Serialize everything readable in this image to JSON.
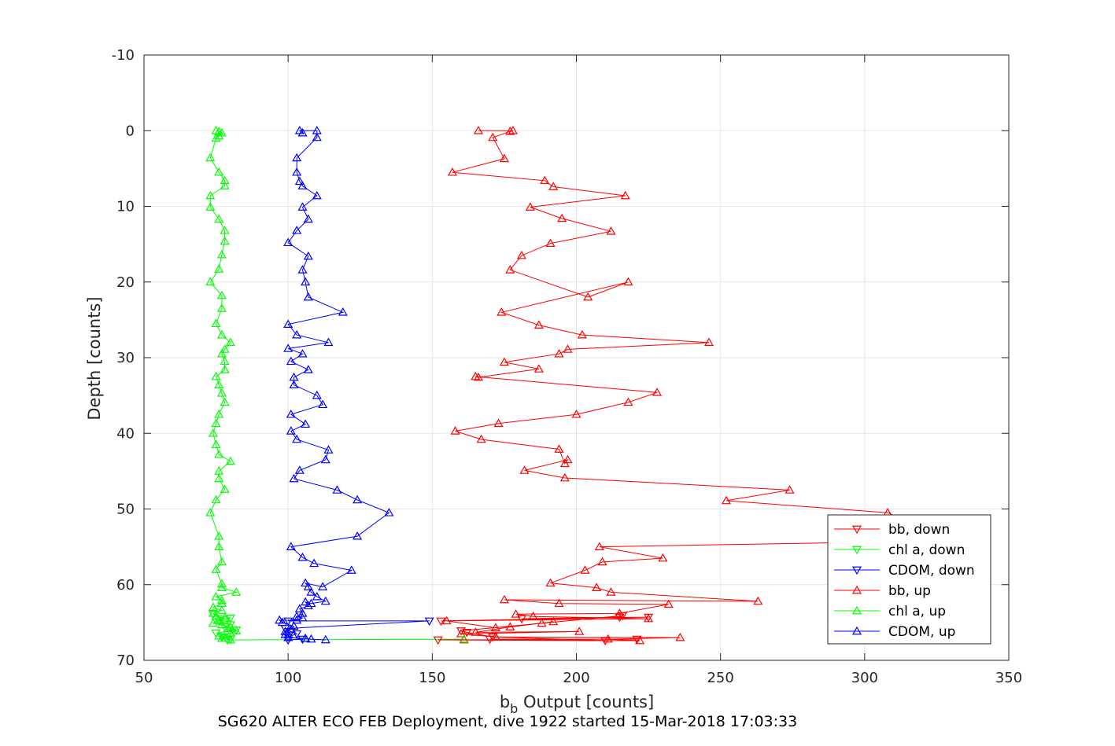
{
  "chart_data": {
    "type": "line",
    "xlabel_main": "b",
    "xlabel_sub": "b",
    "xlabel_rest": " Output [counts]",
    "ylabel": "Depth [counts]",
    "caption": "SG620 ALTER ECO FEB Deployment, dive 1922 started 15-Mar-2018 17:03:33",
    "xlim": [
      50,
      350
    ],
    "ylim": [
      -10,
      70
    ],
    "y_reversed": true,
    "grid": true,
    "xticks": [
      "50",
      "100",
      "150",
      "200",
      "250",
      "300",
      "350"
    ],
    "yticks": [
      "-10",
      "0",
      "10",
      "20",
      "30",
      "40",
      "50",
      "60",
      "70"
    ],
    "legend_position": "bottom-right",
    "series": [
      {
        "name": "bb, down",
        "color": "#ff0000",
        "marker": "triangle-down",
        "points": [
          [
            153,
            64.8
          ],
          [
            225,
            64.3
          ],
          [
            181,
            64.5
          ],
          [
            215,
            64.3
          ],
          [
            216,
            64.1
          ],
          [
            160,
            66.1
          ],
          [
            162,
            66.3
          ],
          [
            171,
            66.9
          ],
          [
            210,
            67.4
          ],
          [
            152,
            67.3
          ],
          [
            221,
            67.2
          ],
          [
            170,
            67.2
          ]
        ]
      },
      {
        "name": "chl a, down",
        "color": "#00ff00",
        "marker": "triangle-down",
        "points": [
          [
            74,
            63.9
          ],
          [
            80,
            64.4
          ],
          [
            76,
            64.8
          ],
          [
            80,
            65.3
          ],
          [
            78,
            65.6
          ],
          [
            82,
            66.0
          ],
          [
            75,
            66.4
          ],
          [
            79,
            66.6
          ],
          [
            77,
            66.9
          ],
          [
            80,
            67.2
          ],
          [
            79,
            67.3
          ]
        ]
      },
      {
        "name": "CDOM, down",
        "color": "#0000ff",
        "marker": "triangle-down",
        "points": [
          [
            100,
            64.8
          ],
          [
            149,
            64.8
          ],
          [
            99,
            65.8
          ],
          [
            101,
            66.2
          ],
          [
            103,
            66.5
          ],
          [
            100,
            66.9
          ],
          [
            105,
            67.2
          ],
          [
            100,
            67.3
          ]
        ]
      },
      {
        "name": "bb, up",
        "color": "#ff0000",
        "marker": "triangle-up",
        "points": [
          [
            161,
            67.3
          ],
          [
            222,
            67.4
          ],
          [
            211,
            67.2
          ],
          [
            236,
            67.0
          ],
          [
            172,
            66.9
          ],
          [
            160,
            66.5
          ],
          [
            201,
            66.2
          ],
          [
            165,
            66.3
          ],
          [
            177,
            65.6
          ],
          [
            192,
            64.9
          ],
          [
            188,
            65.1
          ],
          [
            172,
            65.7
          ],
          [
            155,
            64.8
          ],
          [
            225,
            64.5
          ],
          [
            185,
            64.2
          ],
          [
            179,
            63.9
          ],
          [
            215,
            63.8
          ],
          [
            232,
            62.6
          ],
          [
            194,
            62.5
          ],
          [
            175,
            62.0
          ],
          [
            263,
            62.2
          ],
          [
            212,
            61.0
          ],
          [
            207,
            60.4
          ],
          [
            191,
            59.8
          ],
          [
            203,
            58.1
          ],
          [
            209,
            57.0
          ],
          [
            230,
            56.5
          ],
          [
            208,
            55.0
          ],
          [
            330,
            54.2
          ],
          [
            308,
            50.5
          ],
          [
            252,
            48.9
          ],
          [
            274,
            47.5
          ],
          [
            196,
            45.9
          ],
          [
            182,
            44.9
          ],
          [
            197,
            43.5
          ],
          [
            196,
            44.0
          ],
          [
            194,
            42.1
          ],
          [
            167,
            40.8
          ],
          [
            158,
            39.7
          ],
          [
            173,
            38.7
          ],
          [
            200,
            37.5
          ],
          [
            218,
            35.9
          ],
          [
            228,
            34.6
          ],
          [
            165,
            32.5
          ],
          [
            166,
            32.6
          ],
          [
            187,
            31.5
          ],
          [
            175,
            30.6
          ],
          [
            194,
            29.5
          ],
          [
            197,
            28.9
          ],
          [
            246,
            28.0
          ],
          [
            202,
            27.0
          ],
          [
            187,
            25.7
          ],
          [
            174,
            24.0
          ],
          [
            218,
            20.0
          ],
          [
            204,
            22.0
          ],
          [
            177,
            18.4
          ],
          [
            181,
            16.5
          ],
          [
            191,
            14.9
          ],
          [
            212,
            13.3
          ],
          [
            195,
            11.6
          ],
          [
            184,
            10.1
          ],
          [
            217,
            8.6
          ],
          [
            192,
            7.4
          ],
          [
            189,
            6.6
          ],
          [
            157,
            5.5
          ],
          [
            175,
            3.7
          ],
          [
            171,
            0.9
          ],
          [
            177,
            0.1
          ],
          [
            178,
            0.0
          ],
          [
            166,
            0.0
          ]
        ]
      },
      {
        "name": "chl a, up",
        "color": "#00ff00",
        "marker": "triangle-up",
        "points": [
          [
            161,
            67.2
          ],
          [
            80,
            67.3
          ],
          [
            77,
            67.1
          ],
          [
            76,
            66.8
          ],
          [
            80,
            66.4
          ],
          [
            82,
            66.1
          ],
          [
            80,
            65.6
          ],
          [
            77,
            65.3
          ],
          [
            74,
            65.1
          ],
          [
            76,
            64.7
          ],
          [
            78,
            64.4
          ],
          [
            75,
            64.2
          ],
          [
            74,
            63.8
          ],
          [
            77,
            63.4
          ],
          [
            74,
            63.0
          ],
          [
            77,
            62.5
          ],
          [
            77,
            62.1
          ],
          [
            75,
            61.6
          ],
          [
            82,
            61.0
          ],
          [
            77,
            60.4
          ],
          [
            77,
            59.9
          ],
          [
            75,
            58.0
          ],
          [
            77,
            57.0
          ],
          [
            76,
            55.0
          ],
          [
            76,
            53.6
          ],
          [
            73,
            50.5
          ],
          [
            75,
            48.8
          ],
          [
            78,
            47.4
          ],
          [
            76,
            46.0
          ],
          [
            76,
            45.0
          ],
          [
            80,
            43.7
          ],
          [
            76,
            42.8
          ],
          [
            75,
            41.5
          ],
          [
            74,
            40.0
          ],
          [
            75,
            38.7
          ],
          [
            76,
            37.5
          ],
          [
            78,
            35.9
          ],
          [
            77,
            34.7
          ],
          [
            76,
            33.6
          ],
          [
            75,
            32.5
          ],
          [
            78,
            31.6
          ],
          [
            78,
            30.5
          ],
          [
            77,
            29.5
          ],
          [
            78,
            28.9
          ],
          [
            80,
            28.0
          ],
          [
            77,
            27.0
          ],
          [
            75,
            25.5
          ],
          [
            77,
            23.5
          ],
          [
            77,
            21.8
          ],
          [
            73,
            20.0
          ],
          [
            76,
            18.3
          ],
          [
            77,
            16.4
          ],
          [
            78,
            14.6
          ],
          [
            78,
            13.2
          ],
          [
            76,
            11.7
          ],
          [
            73,
            10.1
          ],
          [
            73,
            8.6
          ],
          [
            78,
            7.3
          ],
          [
            78,
            6.6
          ],
          [
            76,
            5.5
          ],
          [
            73,
            3.6
          ],
          [
            75,
            1.0
          ],
          [
            76,
            0.7
          ],
          [
            77,
            0.3
          ],
          [
            75,
            0.0
          ],
          [
            76,
            0.1
          ]
        ]
      },
      {
        "name": "CDOM, up",
        "color": "#0000ff",
        "marker": "triangle-up",
        "points": [
          [
            113,
            67.3
          ],
          [
            108,
            67.2
          ],
          [
            106,
            67.1
          ],
          [
            100,
            67.0
          ],
          [
            99,
            66.6
          ],
          [
            99,
            66.2
          ],
          [
            101,
            65.9
          ],
          [
            102,
            65.5
          ],
          [
            98,
            65.0
          ],
          [
            97,
            64.7
          ],
          [
            103,
            64.7
          ],
          [
            105,
            64.4
          ],
          [
            103,
            64.2
          ],
          [
            105,
            63.8
          ],
          [
            104,
            63.2
          ],
          [
            107,
            62.8
          ],
          [
            106,
            62.3
          ],
          [
            108,
            62.5
          ],
          [
            113,
            62.2
          ],
          [
            110,
            61.6
          ],
          [
            108,
            61.0
          ],
          [
            107,
            60.3
          ],
          [
            106,
            59.8
          ],
          [
            112,
            60.3
          ],
          [
            122,
            58.1
          ],
          [
            109,
            57.2
          ],
          [
            105,
            56.4
          ],
          [
            101,
            55.0
          ],
          [
            124,
            53.6
          ],
          [
            135,
            50.5
          ],
          [
            124,
            48.8
          ],
          [
            117,
            47.5
          ],
          [
            102,
            46.0
          ],
          [
            104,
            44.9
          ],
          [
            113,
            43.5
          ],
          [
            114,
            42.2
          ],
          [
            103,
            40.8
          ],
          [
            101,
            39.7
          ],
          [
            106,
            38.8
          ],
          [
            101,
            37.5
          ],
          [
            112,
            36.2
          ],
          [
            110,
            35.0
          ],
          [
            102,
            33.6
          ],
          [
            102,
            32.6
          ],
          [
            107,
            31.6
          ],
          [
            101,
            30.5
          ],
          [
            105,
            29.5
          ],
          [
            100,
            28.8
          ],
          [
            114,
            28.0
          ],
          [
            103,
            27.0
          ],
          [
            100,
            25.6
          ],
          [
            119,
            24.0
          ],
          [
            107,
            22.0
          ],
          [
            106,
            20.0
          ],
          [
            105,
            18.4
          ],
          [
            107,
            16.6
          ],
          [
            100,
            14.8
          ],
          [
            103,
            13.2
          ],
          [
            107,
            11.7
          ],
          [
            105,
            10.1
          ],
          [
            110,
            8.6
          ],
          [
            105,
            7.3
          ],
          [
            104,
            6.7
          ],
          [
            103,
            5.5
          ],
          [
            103,
            3.6
          ],
          [
            110,
            0.9
          ],
          [
            110,
            0.0
          ],
          [
            104,
            0.0
          ],
          [
            105,
            0.3
          ]
        ]
      }
    ]
  }
}
